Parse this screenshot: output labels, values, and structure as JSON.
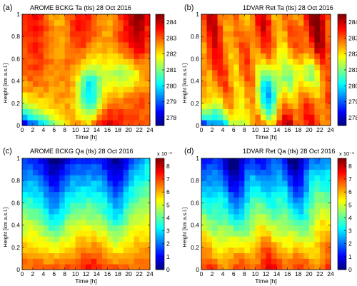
{
  "figure": {
    "panel_count": 4
  },
  "chart_data": [
    {
      "type": "heatmap",
      "panel_label": "(a)",
      "title": "AROME BCKG Ta (tls) 28 Oct 2016",
      "xlabel": "Time [h]",
      "ylabel": "Height [km a.s.l.]",
      "xlim": [
        0,
        24
      ],
      "ylim": [
        0,
        1
      ],
      "x_ticks": [
        "0",
        "2",
        "4",
        "6",
        "8",
        "10",
        "12",
        "14",
        "16",
        "18",
        "20",
        "22",
        "24"
      ],
      "y_ticks": [
        "0",
        "0.2",
        "0.4",
        "0.6",
        "0.8",
        "1"
      ],
      "colorbar": {
        "ticks": [
          "278",
          "279",
          "280",
          "281",
          "282",
          "283",
          "284"
        ],
        "range": [
          277.5,
          284.5
        ],
        "multiplier": ""
      },
      "field": "ta_bckg",
      "colormap": "jet"
    },
    {
      "type": "heatmap",
      "panel_label": "(b)",
      "title": "1DVAR Ret Ta (tls) 28 Oct 2016",
      "xlabel": "Time [h]",
      "ylabel": "Height [km a.s.l.]",
      "xlim": [
        0,
        24
      ],
      "ylim": [
        0,
        1
      ],
      "x_ticks": [
        "0",
        "2",
        "4",
        "6",
        "8",
        "10",
        "12",
        "14",
        "16",
        "18",
        "20",
        "22",
        "24"
      ],
      "y_ticks": [
        "0",
        "0.2",
        "0.4",
        "0.6",
        "0.8",
        "1"
      ],
      "colorbar": {
        "ticks": [
          "278",
          "279",
          "280",
          "281",
          "282",
          "283",
          "284"
        ],
        "range": [
          277.5,
          284.5
        ],
        "multiplier": ""
      },
      "field": "ta_ret",
      "colormap": "jet"
    },
    {
      "type": "heatmap",
      "panel_label": "(c)",
      "title": "AROME BCKG Qa (tls) 28 Oct 2016",
      "xlabel": "Time [h]",
      "ylabel": "Height [km a.s.l.]",
      "xlim": [
        0,
        24
      ],
      "ylim": [
        0,
        1
      ],
      "x_ticks": [
        "0",
        "2",
        "4",
        "6",
        "8",
        "10",
        "12",
        "14",
        "16",
        "18",
        "20",
        "22",
        "24"
      ],
      "y_ticks": [
        "0",
        "0.2",
        "0.4",
        "0.6",
        "0.8",
        "1"
      ],
      "colorbar": {
        "ticks": [
          "0",
          "1",
          "2",
          "3",
          "4",
          "5",
          "6",
          "7",
          "8"
        ],
        "range": [
          0,
          8.6
        ],
        "multiplier": "x 10⁻³"
      },
      "field": "qa_bckg",
      "colormap": "jet"
    },
    {
      "type": "heatmap",
      "panel_label": "(d)",
      "title": "1DVAR Ret Qa (tls) 28 Oct 2016",
      "xlabel": "Time [h]",
      "ylabel": "Height [km a.s.l.]",
      "xlim": [
        0,
        24
      ],
      "ylim": [
        0,
        1
      ],
      "x_ticks": [
        "0",
        "2",
        "4",
        "6",
        "8",
        "10",
        "12",
        "14",
        "16",
        "18",
        "20",
        "22",
        "24"
      ],
      "y_ticks": [
        "0",
        "0.2",
        "0.4",
        "0.6",
        "0.8",
        "1"
      ],
      "colorbar": {
        "ticks": [
          "0",
          "1",
          "2",
          "3",
          "4",
          "5",
          "6",
          "7",
          "8"
        ],
        "range": [
          0,
          8.6
        ],
        "multiplier": "x 10⁻³"
      },
      "field": "qa_ret",
      "colormap": "jet"
    }
  ]
}
